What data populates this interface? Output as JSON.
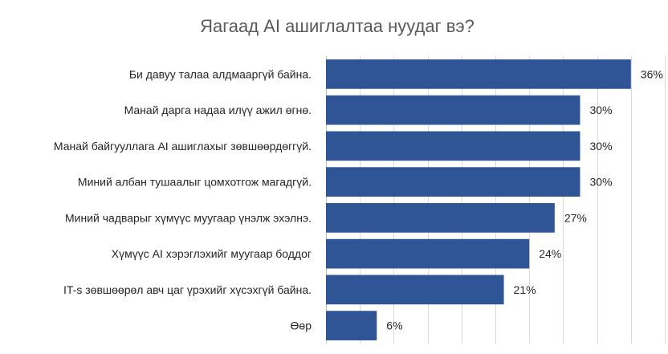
{
  "chart_data": {
    "type": "bar",
    "orientation": "horizontal",
    "title": "Яагаад AI ашиглалтаа нуудаг вэ?",
    "categories": [
      "Би давуу талаа алдмааргүй байна.",
      "Манай дарга надаа илүү ажил өгнө.",
      "Манай байгууллага AI ашиглахыг зөвшөөрдөггүй.",
      "Миний албан тушаалыг цомхотгож магадгүй.",
      "Миний чадварыг хүмүүс муугаар үнэлж эхэлнэ.",
      "Хүмүүс AI хэрэглэхийг муугаар боддог",
      "IT-s зөвшөөрөл авч цаг үрэхийг хүсэхгүй байна.",
      "Өөр"
    ],
    "values": [
      36,
      30,
      30,
      30,
      27,
      24,
      21,
      6
    ],
    "data_labels": [
      "36%",
      "30%",
      "30%",
      "30%",
      "27%",
      "24%",
      "21%",
      "6%"
    ],
    "xlim": [
      0,
      40
    ],
    "grid": true,
    "legend": "none",
    "bar_color": "#2F5597"
  }
}
